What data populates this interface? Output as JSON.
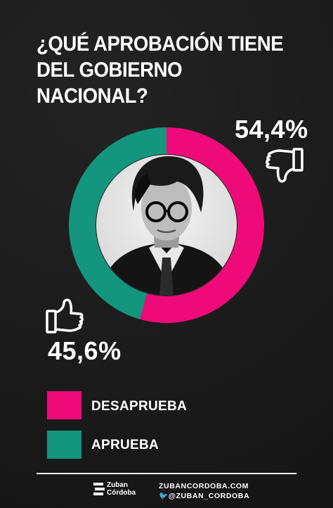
{
  "title": {
    "line1": "¿QUÉ APROBACIÓN TIENE",
    "line2": "DEL GOBIERNO NACIONAL?"
  },
  "chart_data": {
    "type": "pie",
    "donut": true,
    "title": "¿QUÉ APROBACIÓN TIENE DEL GOBIERNO NACIONAL?",
    "series": [
      {
        "name": "DESAPRUEBA",
        "value": 54.4,
        "label": "54,4%",
        "color": "#ef0a7a",
        "icon": "thumbs-down-icon"
      },
      {
        "name": "APRUEBA",
        "value": 45.6,
        "label": "45,6%",
        "color": "#14957e",
        "icon": "thumbs-up-icon"
      }
    ],
    "legend": "bottom-left"
  },
  "center_image": "portrait-photo",
  "footer": {
    "brand_line1": "Zuban",
    "brand_line2": "Córdoba",
    "website": "ZUBANCORDOBA.COM",
    "twitter": "@ZUBAN_CORDOBA",
    "twitter_icon": "twitter-icon"
  }
}
